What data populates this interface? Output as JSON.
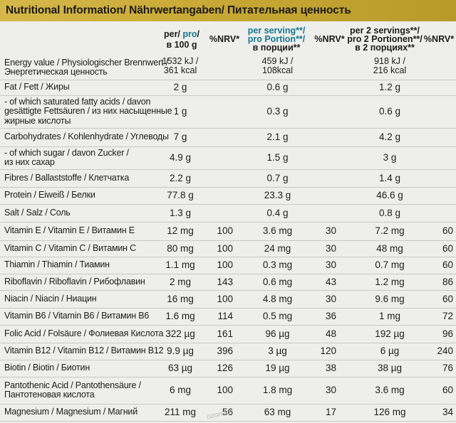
{
  "banner": {
    "title": "Nutritional Information/ Nährwertangaben/ Питательная ценность"
  },
  "headers": {
    "col1": [
      "per/ ",
      "pro",
      "/",
      "в 100 g"
    ],
    "nrv": "%NRV*",
    "col2": [
      "per serving**/",
      "pro Portion**/",
      "в порции**"
    ],
    "col3": [
      "per 2 servings**/",
      "pro 2 Portionen**/",
      "в 2 порциях**"
    ]
  },
  "rows": [
    {
      "label": [
        "Energy value / Physiologischer Brennwert /",
        "Энергетическая ценность"
      ],
      "v1": "1532 kJ / 361 kcal",
      "n1": "",
      "v2": "459 kJ / 108kcal",
      "n2": "",
      "v3": "918 kJ / 216 kcal",
      "n3": ""
    },
    {
      "label": [
        "Fat / Fett / Жиры"
      ],
      "v1": "2 g",
      "n1": "",
      "v2": "0.6 g",
      "n2": "",
      "v3": "1.2 g",
      "n3": ""
    },
    {
      "label": [
        "- of which saturated fatty acids / davon",
        "gesättigte Fettsäuren / из них насыщенные",
        "жирные кислоты"
      ],
      "v1": "1 g",
      "n1": "",
      "v2": "0.3 g",
      "n2": "",
      "v3": "0.6 g",
      "n3": ""
    },
    {
      "label": [
        "Carbohydrates / Kohlenhydrate / Углеводы"
      ],
      "v1": "7 g",
      "n1": "",
      "v2": "2.1 g",
      "n2": "",
      "v3": "4.2 g",
      "n3": ""
    },
    {
      "label": [
        "- of which sugar / davon Zucker /",
        "из них сахар"
      ],
      "v1": "4.9 g",
      "n1": "",
      "v2": "1.5 g",
      "n2": "",
      "v3": "3 g",
      "n3": ""
    },
    {
      "label": [
        "Fibres / Ballaststoffe / Клетчатка"
      ],
      "v1": "2.2 g",
      "n1": "",
      "v2": "0.7 g",
      "n2": "",
      "v3": "1.4 g",
      "n3": ""
    },
    {
      "label": [
        "Protein / Eiweiß / Белки"
      ],
      "v1": "77.8 g",
      "n1": "",
      "v2": "23.3 g",
      "n2": "",
      "v3": "46.6 g",
      "n3": ""
    },
    {
      "label": [
        "Salt / Salz / Соль"
      ],
      "v1": "1.3 g",
      "n1": "",
      "v2": "0.4 g",
      "n2": "",
      "v3": "0.8 g",
      "n3": ""
    },
    {
      "label": [
        "Vitamin E / Vitamin E / Витамин E"
      ],
      "v1": "12 mg",
      "n1": "100",
      "v2": "3.6 mg",
      "n2": "30",
      "v3": "7.2 mg",
      "n3": "60"
    },
    {
      "label": [
        "Vitamin C / Vitamin C / Витамин C"
      ],
      "v1": "80 mg",
      "n1": "100",
      "v2": "24 mg",
      "n2": "30",
      "v3": "48 mg",
      "n3": "60"
    },
    {
      "label": [
        "Thiamin / Thiamin / Тиамин"
      ],
      "v1": "1.1 mg",
      "n1": "100",
      "v2": "0.3 mg",
      "n2": "30",
      "v3": "0.7 mg",
      "n3": "60"
    },
    {
      "label": [
        "Riboflavin / Riboflavin / Рибофлавин"
      ],
      "v1": "2 mg",
      "n1": "143",
      "v2": "0.6 mg",
      "n2": "43",
      "v3": "1.2 mg",
      "n3": "86"
    },
    {
      "label": [
        "Niacin / Niacin / Ниацин"
      ],
      "v1": "16 mg",
      "n1": "100",
      "v2": "4.8 mg",
      "n2": "30",
      "v3": "9.6 mg",
      "n3": "60"
    },
    {
      "label": [
        "Vitamin B6 / Vitamin B6 / Витамин B6"
      ],
      "v1": "1.6 mg",
      "n1": "114",
      "v2": "0.5 mg",
      "n2": "36",
      "v3": "1 mg",
      "n3": "72"
    },
    {
      "label": [
        "Folic Acid / Folsäure / Фолиевая Кислота"
      ],
      "v1": "322 µg",
      "n1": "161",
      "v2": "96 µg",
      "n2": "48",
      "v3": "192 µg",
      "n3": "96"
    },
    {
      "label": [
        "Vitamin B12 / Vitamin B12 / Витамин B12"
      ],
      "v1": "9.9 µg",
      "n1": "396",
      "v2": "3 µg",
      "n2": "120",
      "v3": "6 µg",
      "n3": "240"
    },
    {
      "label": [
        "Biotin / Biotin / Биотин"
      ],
      "v1": "63 µg",
      "n1": "126",
      "v2": "19 µg",
      "n2": "38",
      "v3": "38 µg",
      "n3": "76"
    },
    {
      "label": [
        "Pantothenic Acid / Pantothensäure /",
        "Пантотеновая кислота"
      ],
      "v1": "6 mg",
      "n1": "100",
      "v2": "1.8 mg",
      "n2": "30",
      "v3": "3.6 mg",
      "n3": "60"
    },
    {
      "label": [
        "Magnesium / Magnesium / Магний"
      ],
      "v1": "211 mg",
      "n1": "56",
      "v2": "63 mg",
      "n2": "17",
      "v3": "126 mg",
      "n3": "34"
    }
  ],
  "watermark": "ozon.ru"
}
